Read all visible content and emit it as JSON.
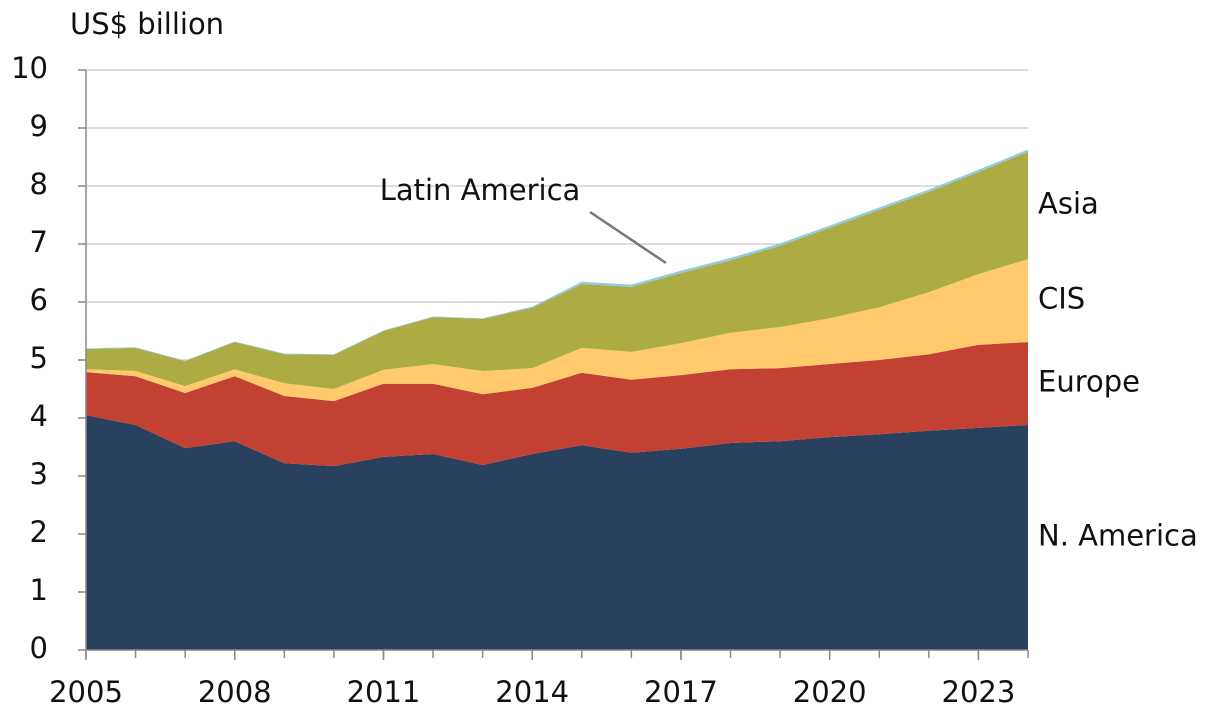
{
  "chart_data": {
    "type": "stacked_area",
    "ylabel": "US$ billion",
    "x": [
      2005,
      2006,
      2007,
      2008,
      2009,
      2010,
      2011,
      2012,
      2013,
      2014,
      2015,
      2016,
      2017,
      2018,
      2019,
      2020,
      2021,
      2022,
      2023,
      2024
    ],
    "series": [
      {
        "name": "N. America",
        "color": "#29405f",
        "values": [
          4.05,
          3.88,
          3.48,
          3.6,
          3.22,
          3.17,
          3.33,
          3.38,
          3.19,
          3.38,
          3.53,
          3.4,
          3.47,
          3.57,
          3.6,
          3.67,
          3.72,
          3.78,
          3.83,
          3.88
        ]
      },
      {
        "name": "Europe",
        "color": "#c24133",
        "values": [
          0.74,
          0.84,
          0.95,
          1.12,
          1.16,
          1.12,
          1.26,
          1.21,
          1.22,
          1.14,
          1.25,
          1.26,
          1.27,
          1.27,
          1.26,
          1.26,
          1.28,
          1.32,
          1.43,
          1.43
        ]
      },
      {
        "name": "CIS",
        "color": "#ffca6b",
        "values": [
          0.05,
          0.09,
          0.12,
          0.12,
          0.22,
          0.21,
          0.24,
          0.34,
          0.4,
          0.34,
          0.43,
          0.48,
          0.55,
          0.63,
          0.71,
          0.79,
          0.91,
          1.07,
          1.22,
          1.43
        ]
      },
      {
        "name": "Asia",
        "color": "#adab43",
        "values": [
          0.35,
          0.4,
          0.43,
          0.47,
          0.5,
          0.59,
          0.67,
          0.81,
          0.9,
          1.04,
          1.1,
          1.12,
          1.21,
          1.25,
          1.4,
          1.56,
          1.68,
          1.73,
          1.76,
          1.85
        ]
      },
      {
        "name": "Latin America",
        "color": "#8fcbe6",
        "values": [
          0.01,
          0.01,
          0.01,
          0.01,
          0.01,
          0.01,
          0.01,
          0.01,
          0.01,
          0.02,
          0.04,
          0.04,
          0.04,
          0.04,
          0.04,
          0.04,
          0.04,
          0.04,
          0.04,
          0.04
        ]
      }
    ],
    "xlim": [
      2005,
      2024
    ],
    "xticks": [
      2005,
      2008,
      2011,
      2014,
      2017,
      2020,
      2023
    ],
    "ylim": [
      0,
      10
    ],
    "yticks": [
      0,
      1,
      2,
      3,
      4,
      5,
      6,
      7,
      8,
      9,
      10
    ],
    "grid": true
  }
}
